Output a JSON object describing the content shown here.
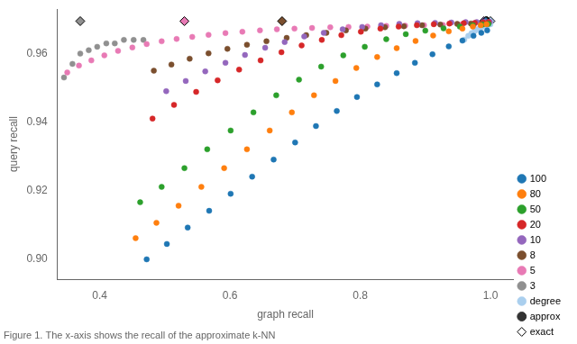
{
  "chart_data": {
    "type": "scatter",
    "xlabel": "graph recall",
    "ylabel": "query recall",
    "annotation": "Figure 1. The x-axis shows the recall of the approximate k-NN",
    "xlim": [
      0.335,
      1.035
    ],
    "ylim": [
      0.894,
      0.973
    ],
    "xticks": [
      0.4,
      0.6,
      0.8,
      {
        "value": 1.0,
        "label": "1.0"
      }
    ],
    "yticks": [
      {
        "value": 0.9,
        "label": "0.90"
      },
      {
        "value": 0.92,
        "label": "0.92"
      },
      {
        "value": 0.94,
        "label": "0.94"
      },
      {
        "value": 0.96,
        "label": "0.96"
      }
    ],
    "grid": false,
    "legend": "lower right",
    "marker_legend": [
      {
        "name": "approx",
        "marker": "circle",
        "color": "#333333"
      },
      {
        "name": "exact",
        "marker": "diamond",
        "color": "#ffffff"
      }
    ],
    "series": [
      {
        "name": "100",
        "color": "#1f77b4",
        "marker": "circle",
        "x": [
          0.472,
          0.503,
          0.535,
          0.568,
          0.601,
          0.634,
          0.667,
          0.7,
          0.732,
          0.764,
          0.795,
          0.826,
          0.856,
          0.884,
          0.911,
          0.936,
          0.957,
          0.974,
          0.986,
          0.995
        ],
        "values": [
          0.8998,
          0.9043,
          0.9091,
          0.914,
          0.919,
          0.924,
          0.929,
          0.934,
          0.9388,
          0.9432,
          0.9473,
          0.951,
          0.9543,
          0.9573,
          0.9598,
          0.9621,
          0.9638,
          0.9652,
          0.9661,
          0.9668
        ]
      },
      {
        "name": "80",
        "color": "#ff7f0e",
        "marker": "circle",
        "x": [
          0.455,
          0.487,
          0.521,
          0.556,
          0.591,
          0.626,
          0.661,
          0.695,
          0.729,
          0.762,
          0.794,
          0.826,
          0.856,
          0.885,
          0.912,
          0.936,
          0.957,
          0.973,
          0.985,
          0.994
        ],
        "values": [
          0.906,
          0.9105,
          0.9155,
          0.921,
          0.9265,
          0.932,
          0.9375,
          0.9428,
          0.9478,
          0.952,
          0.9558,
          0.959,
          0.9616,
          0.9637,
          0.9653,
          0.9665,
          0.9673,
          0.9679,
          0.9683,
          0.9686
        ]
      },
      {
        "name": "50",
        "color": "#2ca02c",
        "marker": "circle",
        "x": [
          0.462,
          0.495,
          0.53,
          0.565,
          0.601,
          0.636,
          0.671,
          0.706,
          0.74,
          0.774,
          0.807,
          0.84,
          0.87,
          0.9,
          0.928,
          0.953,
          0.973,
          0.988,
          0.997
        ],
        "values": [
          0.9165,
          0.921,
          0.9265,
          0.932,
          0.9375,
          0.9428,
          0.9478,
          0.9524,
          0.9562,
          0.9595,
          0.962,
          0.9642,
          0.9657,
          0.9667,
          0.9674,
          0.9679,
          0.9683,
          0.9685,
          0.9687
        ]
      },
      {
        "name": "20",
        "color": "#d62728",
        "marker": "circle",
        "x": [
          0.481,
          0.514,
          0.548,
          0.581,
          0.614,
          0.647,
          0.679,
          0.71,
          0.741,
          0.771,
          0.801,
          0.831,
          0.859,
          0.887,
          0.913,
          0.937,
          0.959,
          0.976,
          0.989,
          0.997
        ],
        "values": [
          0.941,
          0.945,
          0.9488,
          0.9522,
          0.9553,
          0.958,
          0.9604,
          0.9624,
          0.964,
          0.9654,
          0.9664,
          0.9673,
          0.9679,
          0.9683,
          0.9686,
          0.9688,
          0.9689,
          0.969,
          0.9691,
          0.9692
        ]
      },
      {
        "name": "10",
        "color": "#9467bd",
        "marker": "circle",
        "x": [
          0.502,
          0.532,
          0.562,
          0.593,
          0.623,
          0.654,
          0.684,
          0.714,
          0.744,
          0.773,
          0.803,
          0.832,
          0.86,
          0.888,
          0.915,
          0.94,
          0.962,
          0.979,
          0.991,
          0.999
        ],
        "values": [
          0.949,
          0.952,
          0.9548,
          0.9573,
          0.9596,
          0.9617,
          0.9634,
          0.965,
          0.9661,
          0.9671,
          0.9678,
          0.9683,
          0.9687,
          0.9689,
          0.969,
          0.9691,
          0.9692,
          0.9692,
          0.9693,
          0.9693
        ]
      },
      {
        "name": "8",
        "color": "#7b4f2e",
        "marker": "circle",
        "x": [
          0.483,
          0.51,
          0.538,
          0.567,
          0.596,
          0.626,
          0.656,
          0.687,
          0.717,
          0.748,
          0.778,
          0.808,
          0.838,
          0.867,
          0.895,
          0.923,
          0.949,
          0.97,
          0.985,
          0.995
        ],
        "values": [
          0.955,
          0.9568,
          0.9585,
          0.9601,
          0.9614,
          0.9626,
          0.9636,
          0.9646,
          0.9654,
          0.9661,
          0.9668,
          0.9673,
          0.9677,
          0.968,
          0.9683,
          0.9685,
          0.9687,
          0.9688,
          0.9689,
          0.969
        ]
      },
      {
        "name": "5",
        "color": "#e87ab5",
        "marker": "circle",
        "x": [
          0.35,
          0.368,
          0.387,
          0.407,
          0.428,
          0.45,
          0.472,
          0.495,
          0.518,
          0.542,
          0.567,
          0.593,
          0.619,
          0.646,
          0.672,
          0.699,
          0.726,
          0.754,
          0.782,
          0.811,
          0.84,
          0.869,
          0.898,
          0.927,
          0.955,
          0.975,
          0.99
        ],
        "values": [
          0.9545,
          0.9565,
          0.958,
          0.9595,
          0.9608,
          0.9618,
          0.9628,
          0.9636,
          0.9643,
          0.9649,
          0.9655,
          0.966,
          0.9664,
          0.9668,
          0.9671,
          0.9673,
          0.9675,
          0.9677,
          0.9678,
          0.9679,
          0.9681,
          0.9682,
          0.9683,
          0.9684,
          0.9685,
          0.9686,
          0.9687
        ]
      },
      {
        "name": "3",
        "color": "#909090",
        "marker": "circle",
        "x": [
          0.345,
          0.358,
          0.37,
          0.383,
          0.396,
          0.41,
          0.423,
          0.437,
          0.452,
          0.467
        ],
        "values": [
          0.953,
          0.957,
          0.96,
          0.961,
          0.962,
          0.963,
          0.963,
          0.964,
          0.964,
          0.964
        ]
      },
      {
        "name": "degree",
        "color": "#aacfee",
        "marker": "circle",
        "x": [
          0.96,
          0.966,
          0.971,
          0.976,
          0.98,
          0.984,
          0.987,
          0.99,
          0.992,
          0.994,
          0.996,
          0.998,
          1.0
        ],
        "values": [
          0.9641,
          0.9652,
          0.966,
          0.9666,
          0.9671,
          0.9675,
          0.9678,
          0.968,
          0.9682,
          0.9683,
          0.9684,
          0.9685,
          0.9686
        ]
      },
      {
        "name": "100",
        "color": "#1f77b4",
        "marker": "diamond",
        "x": [
          0.993
        ],
        "values": [
          0.9695
        ]
      },
      {
        "name": "80",
        "color": "#ff7f0e",
        "marker": "diamond",
        "x": [
          0.994
        ],
        "values": [
          0.9695
        ]
      },
      {
        "name": "50",
        "color": "#2ca02c",
        "marker": "diamond",
        "x": [
          0.995
        ],
        "values": [
          0.9695
        ]
      },
      {
        "name": "20",
        "color": "#d62728",
        "marker": "diamond",
        "x": [
          0.993
        ],
        "values": [
          0.9695
        ]
      },
      {
        "name": "10",
        "color": "#9467bd",
        "marker": "diamond",
        "x": [
          0.99
        ],
        "values": [
          0.9695
        ]
      },
      {
        "name": "8",
        "color": "#7b4f2e",
        "marker": "diamond",
        "x": [
          0.68
        ],
        "values": [
          0.9695
        ]
      },
      {
        "name": "5",
        "color": "#e87ab5",
        "marker": "diamond",
        "x": [
          0.53
        ],
        "values": [
          0.9695
        ]
      },
      {
        "name": "3",
        "color": "#909090",
        "marker": "diamond",
        "x": [
          0.37
        ],
        "values": [
          0.9695
        ]
      },
      {
        "name": "degree",
        "color": "#aacfee",
        "marker": "diamond",
        "x": [
          1.0
        ],
        "values": [
          0.9695
        ]
      }
    ]
  }
}
